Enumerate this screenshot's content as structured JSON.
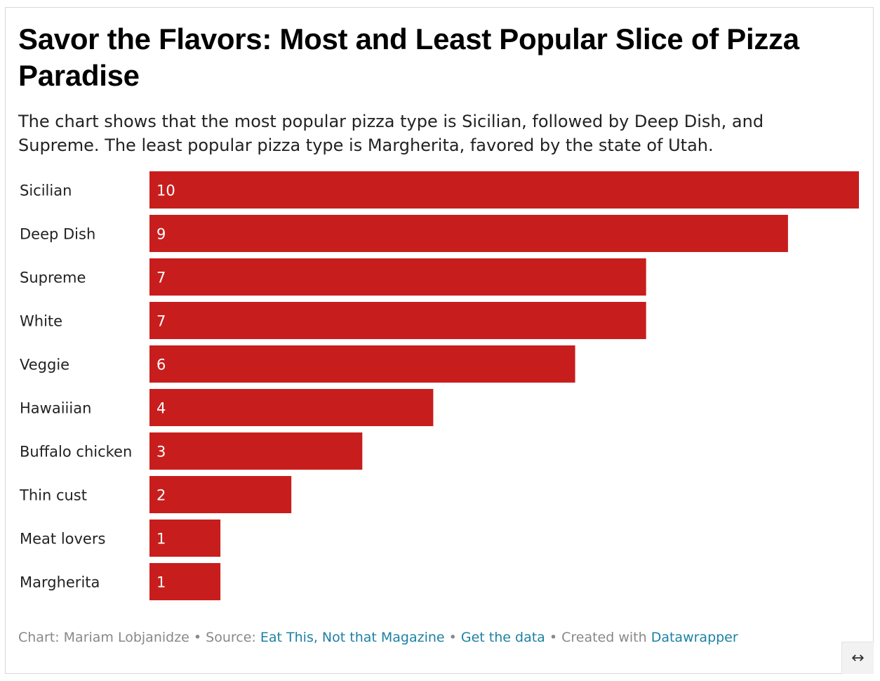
{
  "title": "Savor the Flavors: Most and Least Popular Slice of Pizza Paradise",
  "subtitle": "The chart shows that the most popular pizza type is Sicilian, followed by Deep Dish, and Supreme. The least popular pizza type is Margherita, favored by the state of Utah.",
  "chart_data": {
    "type": "bar",
    "orientation": "horizontal",
    "categories": [
      "Sicilian",
      "Deep Dish",
      "Supreme",
      "White",
      "Veggie",
      "Hawaiiian",
      "Buffalo chicken",
      "Thin cust",
      "Meat lovers",
      "Margherita"
    ],
    "values": [
      10,
      9,
      7,
      7,
      6,
      4,
      3,
      2,
      1,
      1
    ],
    "xlim": [
      0,
      10
    ],
    "bar_color": "#c71e1d",
    "grid": false
  },
  "footer": {
    "chart_prefix": "Chart: Mariam Lobjanidze",
    "source_prefix": "Source: ",
    "source_link": "Eat This, Not that Magazine",
    "get_data": "Get the data",
    "created_prefix": "Created with ",
    "created_link": "Datawrapper",
    "separator": " • "
  },
  "expand_icon": "↔"
}
